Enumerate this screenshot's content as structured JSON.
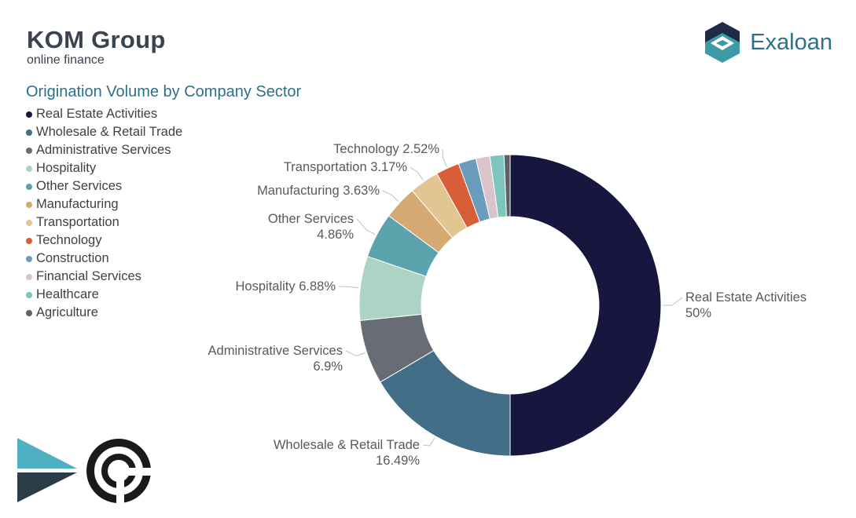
{
  "header": {
    "brand_name": "KOM Group",
    "brand_subtitle": "online finance",
    "partner_name": "Exaloan"
  },
  "chart_data": {
    "type": "pie",
    "title": "Origination Volume by Company Sector",
    "donut": true,
    "legend_position": "left",
    "categories": [
      "Real Estate Activities",
      "Wholesale & Retail Trade",
      "Administrative Services",
      "Hospitality",
      "Other Services",
      "Manufacturing",
      "Transportation",
      "Technology",
      "Construction",
      "Financial Services",
      "Healthcare",
      "Agriculture"
    ],
    "values": [
      50,
      16.49,
      6.9,
      6.88,
      4.86,
      3.63,
      3.17,
      2.52,
      1.9,
      1.5,
      1.5,
      0.65
    ],
    "value_labels": [
      "50%",
      "16.49%",
      "6.9%",
      "6.88%",
      "4.86%",
      "3.63%",
      "3.17%",
      "2.52%",
      "",
      "",
      "",
      ""
    ],
    "colors": [
      "#16163f",
      "#426e87",
      "#686c75",
      "#add3c4",
      "#5ba3ad",
      "#d4aa72",
      "#e3c591",
      "#d85e38",
      "#6b9bbd",
      "#d9c5c9",
      "#7ec6bd",
      "#5d6168"
    ]
  }
}
